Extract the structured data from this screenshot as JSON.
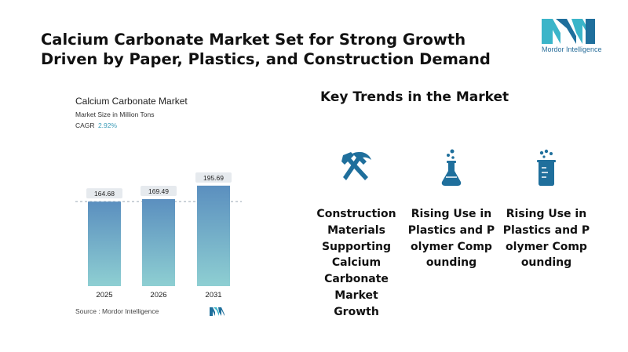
{
  "headline": "Calcium Carbonate Market Set for Strong Growth Driven by Paper, Plastics, and Construction Demand",
  "logo": {
    "text": "Mordor Intelligence",
    "icon": "mordor-intelligence-logo"
  },
  "chart": {
    "title": "Calcium Carbonate Market",
    "subtitle": "Market Size in Million Tons",
    "cagr_label": "CAGR",
    "cagr_value": "2.92%",
    "source": "Source :  Mordor Intelligence"
  },
  "chart_data": {
    "type": "bar",
    "title": "Calcium Carbonate Market",
    "ylabel": "Market Size in Million Tons",
    "categories": [
      "2025",
      "2026",
      "2031"
    ],
    "values": [
      164.68,
      169.49,
      195.69
    ],
    "value_labels": [
      "164.68",
      "169.49",
      "195.69"
    ],
    "ylim": [
      0,
      200
    ],
    "reference_line": 164.68,
    "grid": false,
    "colors": {
      "bar_top": "#5b8fbf",
      "bar_bottom": "#8ecfd2",
      "label_bg": "#e6eaee"
    }
  },
  "trends": {
    "title": "Key Trends in the Market",
    "items": [
      {
        "icon": "hammer-pick-icon",
        "label": "Construction Materials Supporting Calcium Carbonate Market Growth"
      },
      {
        "icon": "flask-icon",
        "label": "Rising Use in Plastics and Polymer Compounding"
      },
      {
        "icon": "beaker-icon",
        "label": "Rising Use in Plastics and Polymer Compounding"
      }
    ]
  },
  "colors": {
    "accent": "#1f6f9c",
    "icon": "#1f6f9c",
    "logo_light": "#3bb5c9",
    "logo_dark": "#1f6f9c"
  }
}
